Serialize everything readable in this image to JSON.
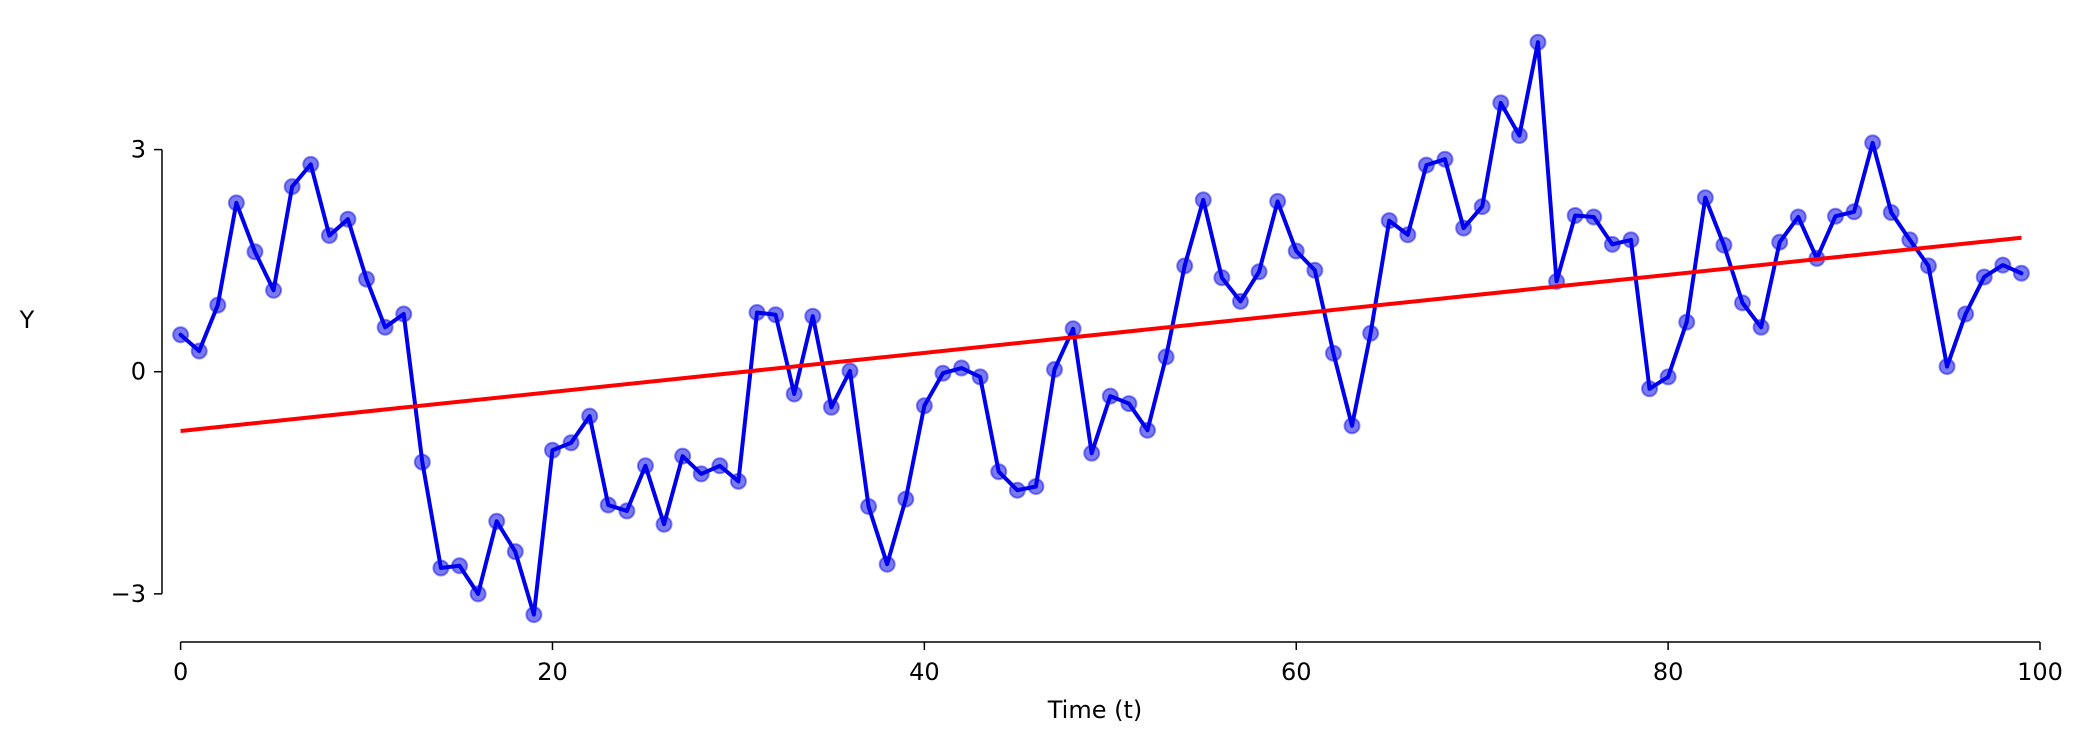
{
  "chart_data": {
    "type": "line",
    "title": "",
    "xlabel": "Time (t)",
    "ylabel": "Y",
    "xlim": [
      -1,
      100
    ],
    "ylim": [
      -3.65,
      4.75
    ],
    "xticks": [
      0,
      20,
      40,
      60,
      80,
      100
    ],
    "xtick_labels": [
      "0",
      "20",
      "40",
      "60",
      "80",
      "100"
    ],
    "yticks": [
      -3,
      0,
      3
    ],
    "ytick_labels": [
      "−3",
      "0",
      "3"
    ],
    "grid": false,
    "legend": "none",
    "series": [
      {
        "kind": "line+markers",
        "color": "#0000ee",
        "marker_color": "#6b6bf0",
        "x": [
          0,
          1,
          2,
          3,
          4,
          5,
          6,
          7,
          8,
          9,
          10,
          11,
          12,
          13,
          14,
          15,
          16,
          17,
          18,
          19,
          20,
          21,
          22,
          23,
          24,
          25,
          26,
          27,
          28,
          29,
          30,
          31,
          32,
          33,
          34,
          35,
          36,
          37,
          38,
          39,
          40,
          41,
          42,
          43,
          44,
          45,
          46,
          47,
          48,
          49,
          50,
          51,
          52,
          53,
          54,
          55,
          56,
          57,
          58,
          59,
          60,
          61,
          62,
          63,
          64,
          65,
          66,
          67,
          68,
          69,
          70,
          71,
          72,
          73,
          74,
          75,
          76,
          77,
          78,
          79,
          80,
          81,
          82,
          83,
          84,
          85,
          86,
          87,
          88,
          89,
          90,
          91,
          92,
          93,
          94,
          95,
          96,
          97,
          98,
          99
        ],
        "values": [
          0.5,
          0.28,
          0.9,
          2.28,
          1.62,
          1.1,
          2.5,
          2.8,
          1.84,
          2.06,
          1.25,
          0.6,
          0.78,
          -1.22,
          -2.65,
          -2.62,
          -3.0,
          -2.02,
          -2.43,
          -3.28,
          -1.06,
          -0.96,
          -0.6,
          -1.8,
          -1.88,
          -1.27,
          -2.06,
          -1.14,
          -1.38,
          -1.27,
          -1.48,
          0.8,
          0.77,
          -0.3,
          0.75,
          -0.48,
          0.01,
          -1.82,
          -2.6,
          -1.72,
          -0.46,
          -0.02,
          0.05,
          -0.07,
          -1.35,
          -1.6,
          -1.55,
          0.03,
          0.58,
          -1.1,
          -0.33,
          -0.43,
          -0.79,
          0.2,
          1.43,
          2.32,
          1.27,
          0.95,
          1.35,
          2.3,
          1.63,
          1.37,
          0.25,
          -0.73,
          0.52,
          2.04,
          1.85,
          2.79,
          2.87,
          1.94,
          2.23,
          3.63,
          3.19,
          4.45,
          1.22,
          2.11,
          2.09,
          1.72,
          1.78,
          -0.23,
          -0.07,
          0.67,
          2.35,
          1.71,
          0.93,
          0.6,
          1.75,
          2.09,
          1.53,
          2.1,
          2.16,
          3.09,
          2.15,
          1.78,
          1.43,
          0.07,
          0.78,
          1.28,
          1.44,
          1.33
        ]
      },
      {
        "kind": "line",
        "color": "#ff0000",
        "x": [
          0,
          99
        ],
        "values": [
          -0.8,
          1.81
        ]
      }
    ]
  }
}
